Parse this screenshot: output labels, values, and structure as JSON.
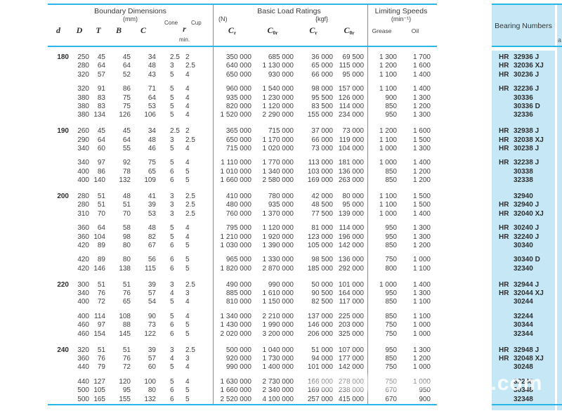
{
  "colors": {
    "accent": "#29b6e8",
    "panel_bg": "#c6e8f6",
    "text": "#3f3f3f",
    "divider": "#8c8c8c"
  },
  "header": {
    "boundary": {
      "title": "Boundary Dimensions",
      "unit": "(mm)",
      "d": "d",
      "D": "D",
      "T": "T",
      "B": "B",
      "C": "C",
      "cone": "Cone",
      "cup": "Cup",
      "r": "r",
      "min": "min."
    },
    "loads": {
      "title": "Basic Load Ratings",
      "n": "(N)",
      "kgf": "{kgf}",
      "c": "C",
      "sub_r": "r",
      "sub_0r": "0r"
    },
    "speeds": {
      "title": "Limiting Speeds",
      "unit": "(min⁻¹)",
      "grease": "Grease",
      "oil": "Oil"
    },
    "bearing_numbers": {
      "title": "Bearing Numbers"
    }
  },
  "edge_fragment": "a",
  "watermark": "58.com",
  "groups": [
    {
      "d": "180",
      "blocks": [
        {
          "rows": [
            {
              "dims": [
                "250",
                "45",
                "45",
                "34",
                "2.5",
                "2"
              ],
              "loads": [
                "350 000",
                "685 000",
                "36 000",
                "69 500"
              ],
              "speeds": [
                "1 300",
                "1 700"
              ],
              "bearing": [
                "HR",
                "32936 J"
              ]
            },
            {
              "dims": [
                "280",
                "64",
                "64",
                "48",
                "3",
                "2.5"
              ],
              "loads": [
                "640 000",
                "1 130 000",
                "65 000",
                "115 000"
              ],
              "speeds": [
                "1 200",
                "1 600"
              ],
              "bearing": [
                "HR",
                "32036 XJ"
              ]
            },
            {
              "dims": [
                "320",
                "57",
                "52",
                "43",
                "5",
                "4"
              ],
              "loads": [
                "650 000",
                "930 000",
                "66 000",
                "95 000"
              ],
              "speeds": [
                "1 100",
                "1 400"
              ],
              "bearing": [
                "HR",
                "30236 J"
              ]
            }
          ]
        },
        {
          "rows": [
            {
              "dims": [
                "320",
                "91",
                "86",
                "71",
                "5",
                "4"
              ],
              "loads": [
                "960 000",
                "1 540 000",
                "98 000",
                "157 000"
              ],
              "speeds": [
                "1 100",
                "1 400"
              ],
              "bearing": [
                "HR",
                "32236 J"
              ]
            },
            {
              "dims": [
                "380",
                "83",
                "75",
                "64",
                "5",
                "4"
              ],
              "loads": [
                "935 000",
                "1 230 000",
                "95 500",
                "126 000"
              ],
              "speeds": [
                "900",
                "1 300"
              ],
              "bearing": [
                "",
                "30336"
              ]
            },
            {
              "dims": [
                "380",
                "83",
                "75",
                "53",
                "5",
                "4"
              ],
              "loads": [
                "820 000",
                "1 120 000",
                "83 500",
                "114 000"
              ],
              "speeds": [
                "850",
                "1 200"
              ],
              "bearing": [
                "",
                "30336 D"
              ]
            },
            {
              "dims": [
                "380",
                "134",
                "126",
                "106",
                "5",
                "4"
              ],
              "loads": [
                "1 520 000",
                "2 290 000",
                "155 000",
                "234 000"
              ],
              "speeds": [
                "950",
                "1 300"
              ],
              "bearing": [
                "",
                "32336"
              ]
            }
          ]
        }
      ]
    },
    {
      "d": "190",
      "blocks": [
        {
          "rows": [
            {
              "dims": [
                "260",
                "45",
                "45",
                "34",
                "2.5",
                "2"
              ],
              "loads": [
                "365 000",
                "715 000",
                "37 000",
                "73 000"
              ],
              "speeds": [
                "1 200",
                "1 600"
              ],
              "bearing": [
                "HR",
                "32938 J"
              ]
            },
            {
              "dims": [
                "290",
                "64",
                "64",
                "48",
                "3",
                "2.5"
              ],
              "loads": [
                "650 000",
                "1 170 000",
                "66 000",
                "119 000"
              ],
              "speeds": [
                "1 100",
                "1 500"
              ],
              "bearing": [
                "HR",
                "32038 XJ"
              ]
            },
            {
              "dims": [
                "340",
                "60",
                "55",
                "46",
                "5",
                "4"
              ],
              "loads": [
                "715 000",
                "1 020 000",
                "73 000",
                "104 000"
              ],
              "speeds": [
                "1 000",
                "1 300"
              ],
              "bearing": [
                "HR",
                "30238 J"
              ]
            }
          ]
        },
        {
          "rows": [
            {
              "dims": [
                "340",
                "97",
                "92",
                "75",
                "5",
                "4"
              ],
              "loads": [
                "1 110 000",
                "1 770 000",
                "113 000",
                "181 000"
              ],
              "speeds": [
                "1 000",
                "1 400"
              ],
              "bearing": [
                "HR",
                "32238 J"
              ]
            },
            {
              "dims": [
                "400",
                "86",
                "78",
                "65",
                "6",
                "5"
              ],
              "loads": [
                "1 010 000",
                "1 340 000",
                "103 000",
                "136 000"
              ],
              "speeds": [
                "850",
                "1 200"
              ],
              "bearing": [
                "",
                "30338"
              ]
            },
            {
              "dims": [
                "400",
                "140",
                "132",
                "109",
                "6",
                "5"
              ],
              "loads": [
                "1 660 000",
                "2 580 000",
                "169 000",
                "263 000"
              ],
              "speeds": [
                "850",
                "1 200"
              ],
              "bearing": [
                "",
                "32338"
              ]
            }
          ]
        }
      ]
    },
    {
      "d": "200",
      "blocks": [
        {
          "rows": [
            {
              "dims": [
                "280",
                "51",
                "48",
                "41",
                "3",
                "2.5"
              ],
              "loads": [
                "410 000",
                "780 000",
                "42 000",
                "80 000"
              ],
              "speeds": [
                "1 100",
                "1 500"
              ],
              "bearing": [
                "",
                "32940"
              ]
            },
            {
              "dims": [
                "280",
                "51",
                "51",
                "39",
                "3",
                "2.5"
              ],
              "loads": [
                "480 000",
                "935 000",
                "48 500",
                "95 000"
              ],
              "speeds": [
                "1 100",
                "1 500"
              ],
              "bearing": [
                "HR",
                "32940 J"
              ]
            },
            {
              "dims": [
                "310",
                "70",
                "70",
                "53",
                "3",
                "2.5"
              ],
              "loads": [
                "760 000",
                "1 370 000",
                "77 500",
                "139 000"
              ],
              "speeds": [
                "1 000",
                "1 400"
              ],
              "bearing": [
                "HR",
                "32040 XJ"
              ]
            }
          ]
        },
        {
          "rows": [
            {
              "dims": [
                "360",
                "64",
                "58",
                "48",
                "5",
                "4"
              ],
              "loads": [
                "795 000",
                "1 120 000",
                "81 000",
                "114 000"
              ],
              "speeds": [
                "950",
                "1 300"
              ],
              "bearing": [
                "HR",
                "30240 J"
              ]
            },
            {
              "dims": [
                "360",
                "104",
                "98",
                "82",
                "5",
                "4"
              ],
              "loads": [
                "1 210 000",
                "1 920 000",
                "123 000",
                "196 000"
              ],
              "speeds": [
                "950",
                "1 300"
              ],
              "bearing": [
                "HR",
                "32240 J"
              ]
            },
            {
              "dims": [
                "420",
                "89",
                "80",
                "67",
                "6",
                "5"
              ],
              "loads": [
                "1 030 000",
                "1 390 000",
                "105 000",
                "142 000"
              ],
              "speeds": [
                "850",
                "1 200"
              ],
              "bearing": [
                "",
                "30340"
              ]
            }
          ]
        },
        {
          "rows": [
            {
              "dims": [
                "420",
                "89",
                "80",
                "56",
                "6",
                "5"
              ],
              "loads": [
                "965 000",
                "1 330 000",
                "98 500",
                "136 000"
              ],
              "speeds": [
                "750",
                "1 000"
              ],
              "bearing": [
                "",
                "30340 D"
              ]
            },
            {
              "dims": [
                "420",
                "146",
                "138",
                "115",
                "6",
                "5"
              ],
              "loads": [
                "1 820 000",
                "2 870 000",
                "185 000",
                "292 000"
              ],
              "speeds": [
                "800",
                "1 100"
              ],
              "bearing": [
                "",
                "32340"
              ]
            }
          ]
        }
      ]
    },
    {
      "d": "220",
      "blocks": [
        {
          "rows": [
            {
              "dims": [
                "300",
                "51",
                "51",
                "39",
                "3",
                "2.5"
              ],
              "loads": [
                "490 000",
                "990 000",
                "50 000",
                "101 000"
              ],
              "speeds": [
                "1 000",
                "1 400"
              ],
              "bearing": [
                "HR",
                "32944 J"
              ]
            },
            {
              "dims": [
                "340",
                "76",
                "76",
                "57",
                "4",
                "3"
              ],
              "loads": [
                "885 000",
                "1 610 000",
                "90 500",
                "164 000"
              ],
              "speeds": [
                "950",
                "1 300"
              ],
              "bearing": [
                "HR",
                "32044 XJ"
              ]
            },
            {
              "dims": [
                "400",
                "72",
                "65",
                "54",
                "5",
                "4"
              ],
              "loads": [
                "810 000",
                "1 150 000",
                "82 500",
                "117 000"
              ],
              "speeds": [
                "850",
                "1 100"
              ],
              "bearing": [
                "",
                "30244"
              ]
            }
          ]
        },
        {
          "rows": [
            {
              "dims": [
                "400",
                "114",
                "108",
                "90",
                "5",
                "4"
              ],
              "loads": [
                "1 340 000",
                "2 210 000",
                "137 000",
                "225 000"
              ],
              "speeds": [
                "850",
                "1 100"
              ],
              "bearing": [
                "",
                "32244"
              ]
            },
            {
              "dims": [
                "460",
                "97",
                "88",
                "73",
                "6",
                "5"
              ],
              "loads": [
                "1 430 000",
                "1 990 000",
                "146 000",
                "203 000"
              ],
              "speeds": [
                "750",
                "1 000"
              ],
              "bearing": [
                "",
                "30344"
              ]
            },
            {
              "dims": [
                "460",
                "154",
                "145",
                "122",
                "6",
                "5"
              ],
              "loads": [
                "2 020 000",
                "3 200 000",
                "206 000",
                "325 000"
              ],
              "speeds": [
                "750",
                "1 000"
              ],
              "bearing": [
                "",
                "32344"
              ]
            }
          ]
        }
      ]
    },
    {
      "d": "240",
      "blocks": [
        {
          "rows": [
            {
              "dims": [
                "320",
                "51",
                "51",
                "39",
                "3",
                "2.5"
              ],
              "loads": [
                "500 000",
                "1 040 000",
                "51 000",
                "107 000"
              ],
              "speeds": [
                "950",
                "1 300"
              ],
              "bearing": [
                "HR",
                "32948 J"
              ]
            },
            {
              "dims": [
                "360",
                "76",
                "76",
                "57",
                "4",
                "3"
              ],
              "loads": [
                "920 000",
                "1 730 000",
                "94 000",
                "177 000"
              ],
              "speeds": [
                "850",
                "1 200"
              ],
              "bearing": [
                "HR",
                "32048 XJ"
              ]
            },
            {
              "dims": [
                "440",
                "79",
                "72",
                "60",
                "5",
                "4"
              ],
              "loads": [
                "990 000",
                "1 400 000",
                "101 000",
                "142 000"
              ],
              "speeds": [
                "750",
                "1 000"
              ],
              "bearing": [
                "",
                "30248"
              ]
            }
          ]
        },
        {
          "rows": [
            {
              "dims": [
                "440",
                "127",
                "120",
                "100",
                "5",
                "4"
              ],
              "loads": [
                "1 630 000",
                "2 730 000",
                "166 000",
                "278 000"
              ],
              "speeds": [
                "750",
                "1 000"
              ],
              "bearing": [
                "",
                "32248"
              ]
            },
            {
              "dims": [
                "500",
                "105",
                "95",
                "80",
                "6",
                "5"
              ],
              "loads": [
                "1 660 000",
                "2 340 000",
                "169 000",
                "238 000"
              ],
              "speeds": [
                "670",
                "950"
              ],
              "bearing": [
                "",
                "30348"
              ]
            },
            {
              "dims": [
                "500",
                "165",
                "155",
                "132",
                "6",
                "5"
              ],
              "loads": [
                "2 520 000",
                "4 100 000",
                "257 000",
                "415 000"
              ],
              "speeds": [
                "670",
                "900"
              ],
              "bearing": [
                "",
                "32348"
              ]
            }
          ]
        }
      ]
    }
  ]
}
